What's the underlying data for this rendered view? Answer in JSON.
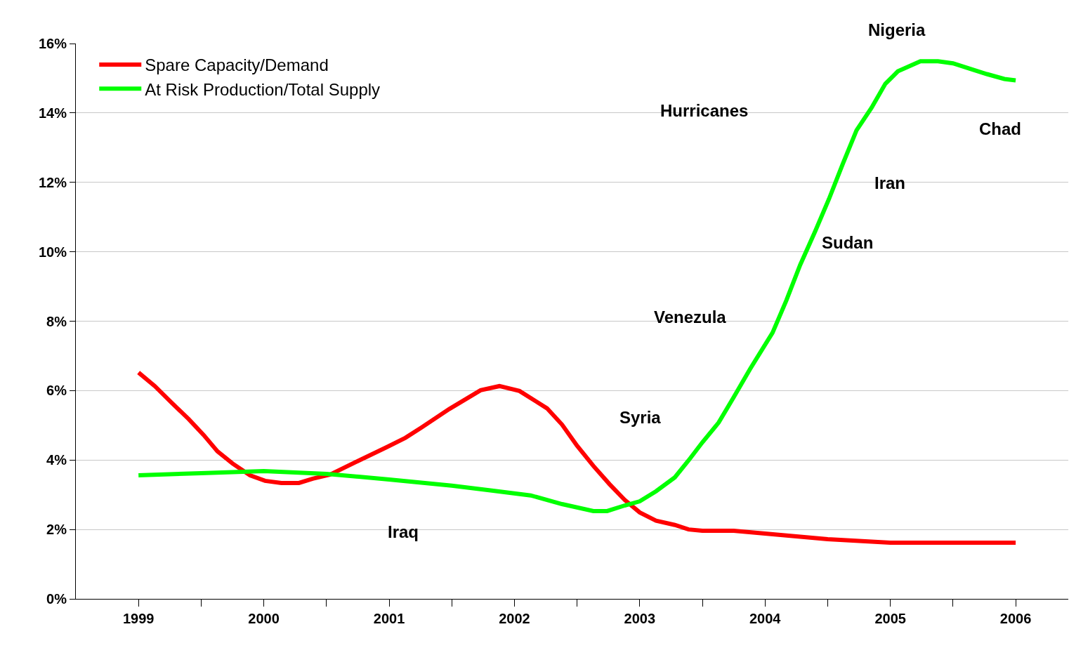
{
  "chart_data": {
    "type": "line",
    "series": [
      {
        "name": "Spare Capacity/Demand",
        "color": "#ff0000",
        "x": [
          1999,
          1999.13,
          1999.27,
          1999.4,
          1999.52,
          1999.63,
          1999.75,
          1999.89,
          2000.01,
          2000.14,
          2000.28,
          2000.39,
          2000.53,
          2000.75,
          2000.98,
          2001.13,
          2001.26,
          2001.48,
          2001.73,
          2001.88,
          2002.04,
          2002.26,
          2002.38,
          2002.5,
          2002.63,
          2002.76,
          2002.88,
          2003.0,
          2003.13,
          2003.28,
          2003.39,
          2003.5,
          2003.75,
          2004.0,
          2004.5,
          2005,
          2006
        ],
        "values": [
          6.52,
          6.13,
          5.63,
          5.18,
          4.72,
          4.25,
          3.9,
          3.56,
          3.4,
          3.34,
          3.34,
          3.46,
          3.58,
          3.97,
          4.37,
          4.64,
          4.94,
          5.47,
          6.01,
          6.13,
          5.99,
          5.49,
          5.02,
          4.41,
          3.83,
          3.3,
          2.85,
          2.49,
          2.25,
          2.13,
          2.0,
          1.96,
          1.96,
          1.88,
          1.72,
          1.62,
          1.62
        ]
      },
      {
        "name": "At Risk Production/Total Supply",
        "color": "#00ff00",
        "x": [
          1999,
          1999.5,
          2000,
          2000.5,
          2001,
          2001.5,
          2001.82,
          2002.13,
          2002.38,
          2002.63,
          2002.74,
          2002.88,
          2003.0,
          2003.13,
          2003.28,
          2003.39,
          2003.5,
          2003.63,
          2003.75,
          2003.88,
          2004.06,
          2004.17,
          2004.28,
          2004.4,
          2004.51,
          2004.62,
          2004.73,
          2004.85,
          2004.96,
          2005.06,
          2005.24,
          2005.38,
          2005.5,
          2005.63,
          2005.77,
          2005.91,
          2006
        ],
        "values": [
          3.56,
          3.62,
          3.68,
          3.6,
          3.44,
          3.26,
          3.12,
          2.98,
          2.73,
          2.53,
          2.53,
          2.69,
          2.81,
          3.1,
          3.5,
          3.99,
          4.51,
          5.08,
          5.81,
          6.62,
          7.67,
          8.6,
          9.62,
          10.59,
          11.52,
          12.53,
          13.5,
          14.15,
          14.84,
          15.2,
          15.49,
          15.49,
          15.43,
          15.28,
          15.12,
          14.98,
          14.94
        ]
      }
    ],
    "xlim": [
      1998.5,
      2006.42
    ],
    "xticks": [
      1999,
      {
        "value": 1999.5,
        "label": null
      },
      2000,
      {
        "value": 2000.5,
        "label": null
      },
      2001,
      {
        "value": 2001.5,
        "label": null
      },
      2002,
      {
        "value": 2002.5,
        "label": null
      },
      2003,
      {
        "value": 2003.5,
        "label": null
      },
      2004,
      {
        "value": 2004.5,
        "label": null
      },
      2005,
      {
        "value": 2005.5,
        "label": null
      },
      2006
    ],
    "ylim": [
      0,
      16
    ],
    "yticks": [
      {
        "value": 0,
        "label": "0%"
      },
      {
        "value": 2,
        "label": "2%"
      },
      {
        "value": 4,
        "label": "4%"
      },
      {
        "value": 6,
        "label": "6%"
      },
      {
        "value": 8,
        "label": "8%"
      },
      {
        "value": 10,
        "label": "10%"
      },
      {
        "value": 12,
        "label": "12%"
      },
      {
        "value": 14,
        "label": "14%"
      },
      {
        "value": 16,
        "label": "16%"
      }
    ],
    "annotations": [
      "Nigeria",
      "Hurricanes",
      "Chad",
      "Iran",
      "Sudan",
      "Venezula",
      "Syria",
      "Iraq"
    ],
    "grid": "y",
    "legend": "top left",
    "line_style": "solid",
    "marker": "none"
  }
}
